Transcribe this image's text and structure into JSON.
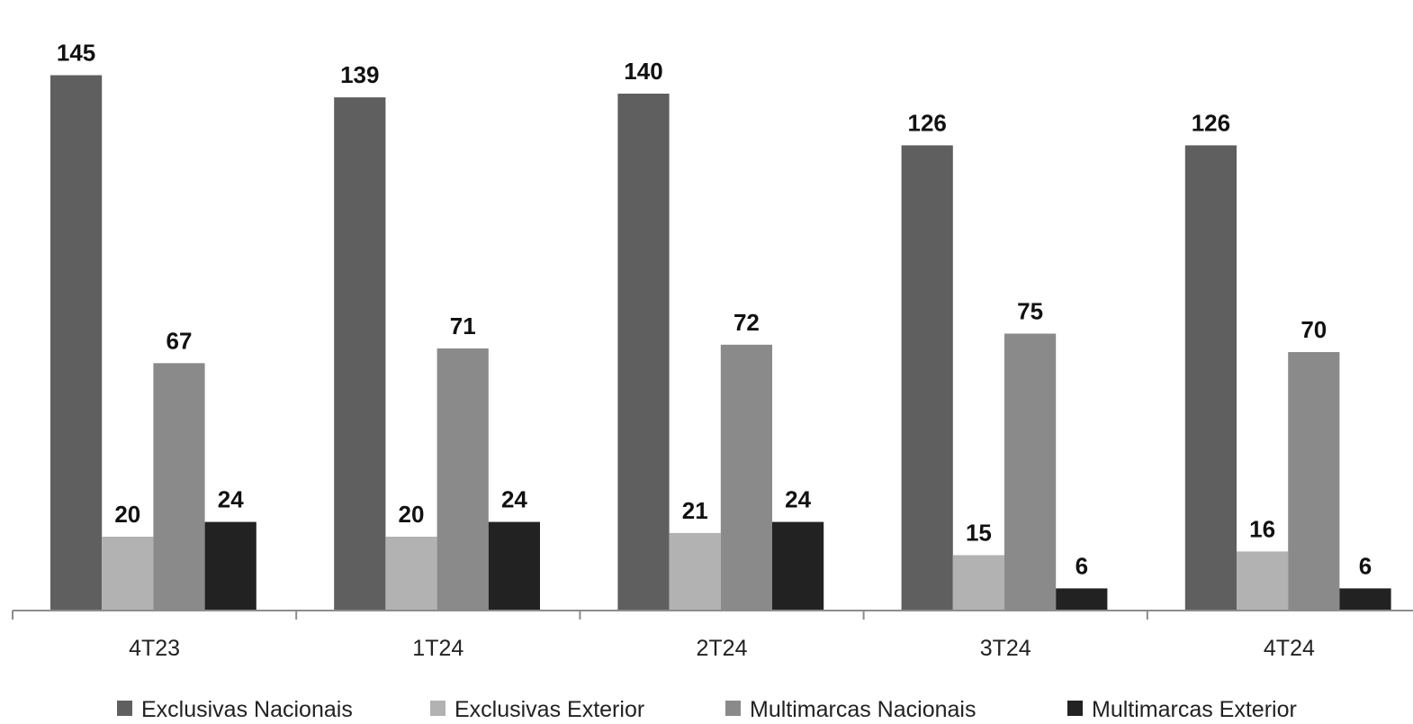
{
  "chart_data": {
    "type": "bar",
    "categories": [
      "4T23",
      "1T24",
      "2T24",
      "3T24",
      "4T24"
    ],
    "series": [
      {
        "name": "Exclusivas Nacionais",
        "values": [
          145,
          139,
          140,
          126,
          126
        ],
        "color": "#5f5f5f"
      },
      {
        "name": "Exclusivas Exterior",
        "values": [
          20,
          20,
          21,
          15,
          16
        ],
        "color": "#b2b2b2"
      },
      {
        "name": "Multimarcas Nacionais",
        "values": [
          67,
          71,
          72,
          75,
          70
        ],
        "color": "#8a8a8a"
      },
      {
        "name": "Multimarcas Exterior",
        "values": [
          24,
          24,
          24,
          6,
          6
        ],
        "color": "#222222"
      }
    ],
    "title": "",
    "xlabel": "",
    "ylabel": "",
    "ylim": [
      0,
      160
    ],
    "grid": false,
    "legend_position": "bottom",
    "data_labels": true
  }
}
